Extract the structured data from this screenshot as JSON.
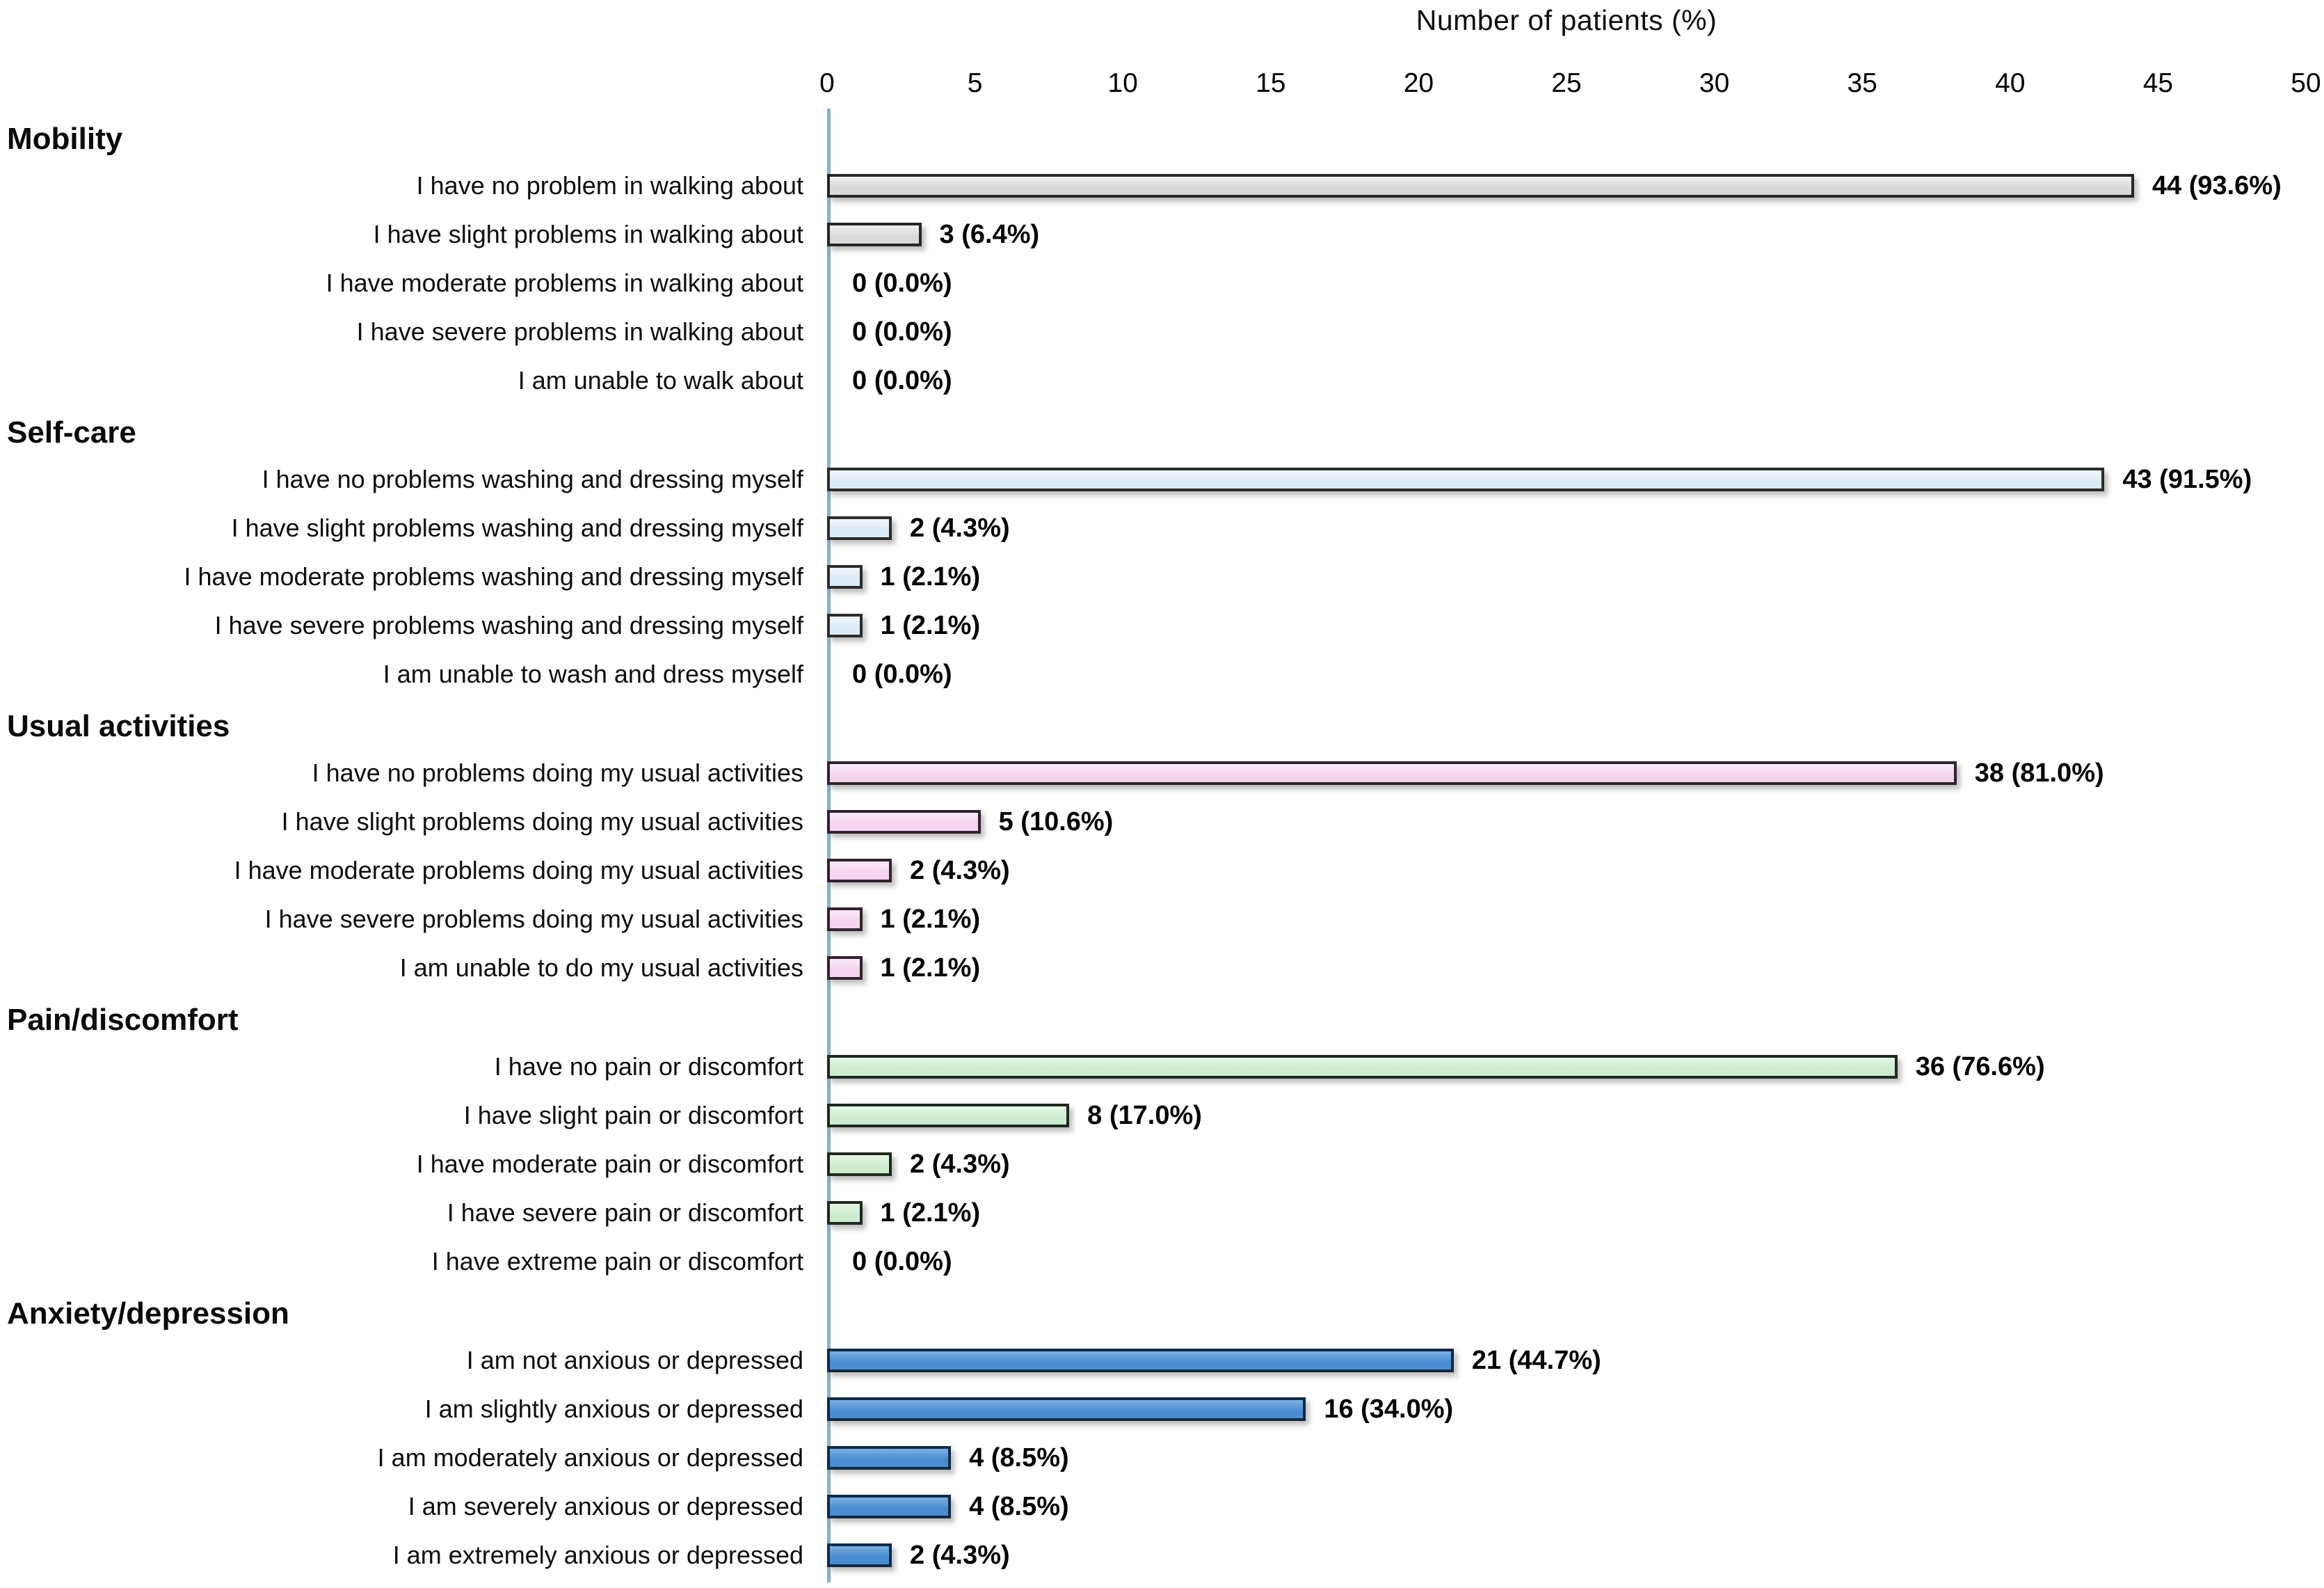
{
  "chart_data": {
    "type": "bar",
    "orientation": "horizontal",
    "title": "Number of patients (%)",
    "xlabel": "Number of patients (%)",
    "ylabel": "",
    "xlim": [
      0,
      50
    ],
    "xticks": [
      0,
      5,
      10,
      15,
      20,
      25,
      30,
      35,
      40,
      45,
      50
    ],
    "grid": false,
    "legend_position": "none",
    "colors": {
      "axis_line": "#85b3cc",
      "text": "#0d0d0d"
    },
    "sections": [
      {
        "name": "Mobility",
        "fill": "#d9d9d9",
        "fill_light": "#efefef",
        "border": "#262626",
        "items": [
          {
            "label": "I have no problem in walking about",
            "value": 44,
            "value_label": "44 (93.6%)"
          },
          {
            "label": "I have slight problems in walking about",
            "value": 3,
            "value_label": "3 (6.4%)"
          },
          {
            "label": "I have moderate problems in walking about",
            "value": 0,
            "value_label": "0 (0.0%)"
          },
          {
            "label": "I have severe problems in walking about",
            "value": 0,
            "value_label": "0 (0.0%)"
          },
          {
            "label": "I am unable to walk about",
            "value": 0,
            "value_label": "0 (0.0%)"
          }
        ]
      },
      {
        "name": "Self-care",
        "fill": "#dcebf5",
        "fill_light": "#eff7fc",
        "border": "#2b2b2b",
        "items": [
          {
            "label": "I have no problems washing and dressing myself",
            "value": 43,
            "value_label": "43 (91.5%)"
          },
          {
            "label": "I have slight problems washing and dressing myself",
            "value": 2,
            "value_label": "2 (4.3%)"
          },
          {
            "label": "I have moderate problems washing and dressing myself",
            "value": 1,
            "value_label": "1 (2.1%)"
          },
          {
            "label": "I have severe problems washing and dressing myself",
            "value": 1,
            "value_label": "1 (2.1%)"
          },
          {
            "label": "I am unable to wash and dress myself",
            "value": 0,
            "value_label": "0 (0.0%)"
          }
        ]
      },
      {
        "name": "Usual activities",
        "fill": "#f4d4ee",
        "fill_light": "#fbe9f7",
        "border": "#32222e",
        "items": [
          {
            "label": "I have no problems doing my usual activities",
            "value": 38,
            "value_label": "38 (81.0%)"
          },
          {
            "label": "I have slight problems doing my usual activities",
            "value": 5,
            "value_label": "5 (10.6%)"
          },
          {
            "label": "I have moderate problems doing my usual activities",
            "value": 2,
            "value_label": "2 (4.3%)"
          },
          {
            "label": "I have severe problems doing my usual activities",
            "value": 1,
            "value_label": "1 (2.1%)"
          },
          {
            "label": "I am unable to do my usual activities",
            "value": 1,
            "value_label": "1 (2.1%)"
          }
        ]
      },
      {
        "name": "Pain/discomfort",
        "fill": "#cdeccf",
        "fill_light": "#e4f5e5",
        "border": "#1e2a1e",
        "items": [
          {
            "label": "I have no pain or discomfort",
            "value": 36,
            "value_label": "36 (76.6%)"
          },
          {
            "label": "I have slight pain or discomfort",
            "value": 8,
            "value_label": "8 (17.0%)"
          },
          {
            "label": "I have moderate pain or discomfort",
            "value": 2,
            "value_label": "2 (4.3%)"
          },
          {
            "label": "I have severe pain or discomfort",
            "value": 1,
            "value_label": "1 (2.1%)"
          },
          {
            "label": "I have extreme pain or discomfort",
            "value": 0,
            "value_label": "0 (0.0%)"
          }
        ]
      },
      {
        "name": "Anxiety/depression",
        "fill": "#4a8cd2",
        "fill_light": "#7cb0e2",
        "border": "#102a45",
        "items": [
          {
            "label": "I am not anxious or depressed",
            "value": 21,
            "value_label": "21 (44.7%)"
          },
          {
            "label": "I am slightly anxious or depressed",
            "value": 16,
            "value_label": "16 (34.0%)"
          },
          {
            "label": "I am moderately anxious or depressed",
            "value": 4,
            "value_label": "4 (8.5%)"
          },
          {
            "label": "I am severely anxious or depressed",
            "value": 4,
            "value_label": "4 (8.5%)"
          },
          {
            "label": "I am extremely anxious or depressed",
            "value": 2,
            "value_label": "2 (4.3%)"
          }
        ]
      }
    ]
  }
}
